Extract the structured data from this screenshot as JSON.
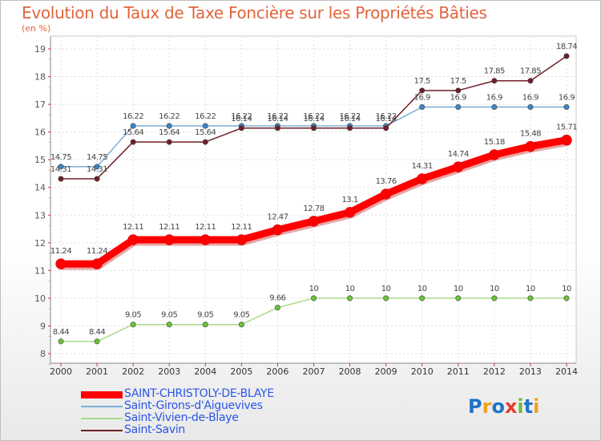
{
  "header": {
    "title": "Evolution du Taux de Taxe Foncière sur les Propriétés Bâties",
    "unit": "(en %)"
  },
  "logo": {
    "text": "Proxiti",
    "colors": [
      "#1f74c8",
      "#f0a21c",
      "#1f74c8",
      "#e53c2e",
      "#6cbf3a",
      "#1f74c8",
      "#f0a21c"
    ]
  },
  "chart_data": {
    "type": "line",
    "title": "Evolution du Taux de Taxe Foncière sur les Propriétés Bâties",
    "ylabel": "(en %)",
    "xlabel": "",
    "x": [
      "2000",
      "2001",
      "2002",
      "2003",
      "2004",
      "2005",
      "2006",
      "2007",
      "2008",
      "2009",
      "2010",
      "2011",
      "2012",
      "2013",
      "2014"
    ],
    "yticks": [
      "8",
      "9",
      "10",
      "11",
      "12",
      "13",
      "14",
      "15",
      "16",
      "17",
      "18",
      "19"
    ],
    "ylim": [
      8,
      19
    ],
    "grid": true,
    "legend_position": "bottom-left",
    "series": [
      {
        "name": "SAINT-CHRISTOLY-DE-BLAYE",
        "color": "#ff0000",
        "marker": "#ff0000",
        "emphasis": true,
        "values": [
          11.24,
          11.24,
          12.11,
          12.11,
          12.11,
          12.11,
          12.47,
          12.78,
          13.1,
          13.76,
          14.31,
          14.74,
          15.18,
          15.48,
          15.71
        ],
        "labels": [
          "11.24",
          "11.24",
          "12.11",
          "12.11",
          "12.11",
          "12.11",
          "12.47",
          "12.78",
          "13.1",
          "13.76",
          "14.31",
          "14.74",
          "15.18",
          "15.48",
          "15.71"
        ]
      },
      {
        "name": "Saint-Girons-d'Aiguevives",
        "color": "#7aaed6",
        "marker": "#3a86c8",
        "emphasis": false,
        "values": [
          14.75,
          14.75,
          16.22,
          16.22,
          16.22,
          16.22,
          16.22,
          16.22,
          16.22,
          16.22,
          16.9,
          16.9,
          16.9,
          16.9,
          16.9
        ],
        "labels": [
          "14.75",
          "14.75",
          "16.22",
          "16.22",
          "16.22",
          "16.22",
          "16.22",
          "16.22",
          "16.22",
          "16.22",
          "16.9",
          "16.9",
          "16.9",
          "16.9",
          "16.9"
        ]
      },
      {
        "name": "Saint-Vivien-de-Blaye",
        "color": "#a8dc88",
        "marker": "#6cc23a",
        "emphasis": false,
        "values": [
          8.44,
          8.44,
          9.05,
          9.05,
          9.05,
          9.05,
          9.66,
          10,
          10,
          10,
          10,
          10,
          10,
          10,
          10
        ],
        "labels": [
          "8.44",
          "8.44",
          "9.05",
          "9.05",
          "9.05",
          "9.05",
          "9.66",
          "10",
          "10",
          "10",
          "10",
          "10",
          "10",
          "10",
          "10"
        ]
      },
      {
        "name": "Saint-Savin",
        "color": "#6e1f28",
        "marker": "#6e1f28",
        "emphasis": false,
        "values": [
          14.31,
          14.31,
          15.64,
          15.64,
          15.64,
          16.14,
          16.14,
          16.14,
          16.14,
          16.14,
          17.5,
          17.5,
          17.85,
          17.85,
          18.74
        ],
        "labels": [
          "14.31",
          "14.31",
          "15.64",
          "15.64",
          "15.64",
          "16.14",
          "16.14",
          "16.14",
          "16.14",
          "16.14",
          "17.5",
          "17.5",
          "17.85",
          "17.85",
          "18.74"
        ]
      }
    ]
  }
}
